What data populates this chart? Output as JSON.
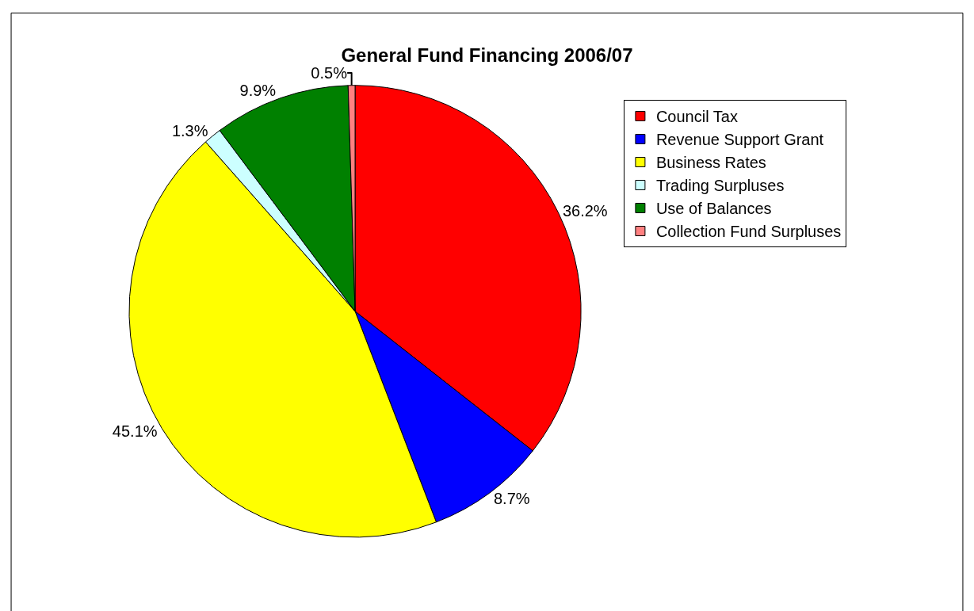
{
  "chart_data": {
    "type": "pie",
    "title": "General Fund Financing 2006/07",
    "categories": [
      "Council Tax",
      "Revenue Support Grant",
      "Business Rates",
      "Trading Surpluses",
      "Use of Balances",
      "Collection Fund Surpluses"
    ],
    "values": [
      36.2,
      8.7,
      45.1,
      1.3,
      9.9,
      0.5
    ],
    "value_labels": [
      "36.2%",
      "8.7%",
      "45.1%",
      "1.3%",
      "9.9%",
      "0.5%"
    ],
    "colors": [
      "#ff0000",
      "#0000ff",
      "#ffff00",
      "#ccffff",
      "#008000",
      "#ff8080"
    ],
    "legend": "right"
  }
}
